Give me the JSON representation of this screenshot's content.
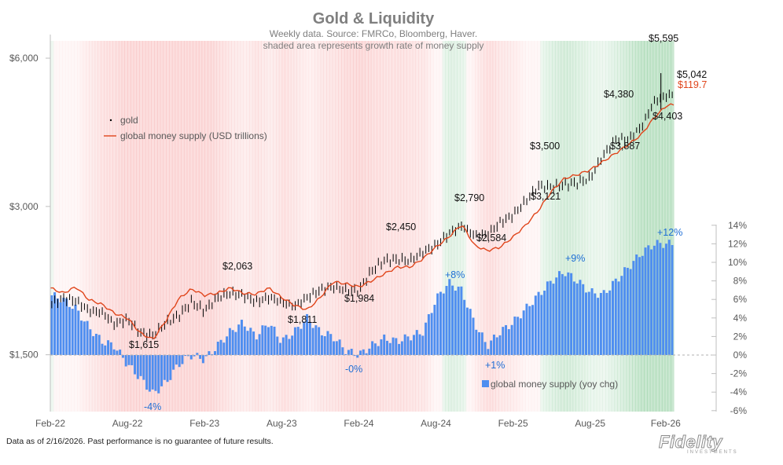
{
  "chart_data": {
    "type": "line",
    "title": "Gold & Liquidity",
    "subtitle_1": "Weekly data.  Source: FMRCo, Bloomberg, Haver.",
    "subtitle_2": "shaded area represents growth rate of money supply",
    "x_labels": [
      "Feb-22",
      "Aug-22",
      "Feb-23",
      "Aug-23",
      "Feb-24",
      "Aug-24",
      "Feb-25",
      "Aug-25",
      "Feb-26"
    ],
    "left_axis": {
      "ticks": [
        "$1,500",
        "$3,000",
        "$6,000"
      ],
      "scale": "log",
      "range": [
        1150,
        6700
      ]
    },
    "right_axis": {
      "ticks": [
        "14%",
        "12%",
        "10%",
        "8%",
        "6%",
        "4%",
        "2%",
        "0%",
        "-2%",
        "-4%",
        "-6%"
      ],
      "range": [
        -6,
        14
      ]
    },
    "series": [
      {
        "name": "gold",
        "kind": "price (weekly high/low bars)",
        "points": [
          [
            "2022-02",
            1900
          ],
          [
            "2022-03",
            1950
          ],
          [
            "2022-04",
            1930
          ],
          [
            "2022-05",
            1840
          ],
          [
            "2022-06",
            1830
          ],
          [
            "2022-07",
            1730
          ],
          [
            "2022-08",
            1770
          ],
          [
            "2022-09",
            1660
          ],
          [
            "2022-10",
            1640
          ],
          [
            "2022-11",
            1740
          ],
          [
            "2022-12",
            1800
          ],
          [
            "2023-01",
            1920
          ],
          [
            "2023-02",
            1840
          ],
          [
            "2023-03",
            1960
          ],
          [
            "2023-04",
            2000
          ],
          [
            "2023-05",
            1980
          ],
          [
            "2023-06",
            1920
          ],
          [
            "2023-07",
            1960
          ],
          [
            "2023-08",
            1920
          ],
          [
            "2023-09",
            1880
          ],
          [
            "2023-10",
            1960
          ],
          [
            "2023-11",
            2030
          ],
          [
            "2023-12",
            2060
          ],
          [
            "2024-01",
            2030
          ],
          [
            "2024-02",
            2020
          ],
          [
            "2024-03",
            2220
          ],
          [
            "2024-04",
            2330
          ],
          [
            "2024-05",
            2340
          ],
          [
            "2024-06",
            2330
          ],
          [
            "2024-07",
            2420
          ],
          [
            "2024-08",
            2500
          ],
          [
            "2024-09",
            2640
          ],
          [
            "2024-10",
            2740
          ],
          [
            "2024-11",
            2620
          ],
          [
            "2024-12",
            2630
          ],
          [
            "2025-01",
            2780
          ],
          [
            "2025-02",
            2880
          ],
          [
            "2025-03",
            3080
          ],
          [
            "2025-04",
            3300
          ],
          [
            "2025-05",
            3280
          ],
          [
            "2025-06",
            3320
          ],
          [
            "2025-07",
            3350
          ],
          [
            "2025-08",
            3420
          ],
          [
            "2025-09",
            3800
          ],
          [
            "2025-10",
            4100
          ],
          [
            "2025-11",
            4100
          ],
          [
            "2025-12",
            4350
          ],
          [
            "2026-01",
            4900
          ],
          [
            "2026-02",
            5042
          ]
        ]
      },
      {
        "name": "global money supply (USD trillions)",
        "points": [
          [
            "2022-02",
            2050
          ],
          [
            "2022-03",
            2000
          ],
          [
            "2022-04",
            2060
          ],
          [
            "2022-05",
            1940
          ],
          [
            "2022-06",
            1900
          ],
          [
            "2022-07",
            1820
          ],
          [
            "2022-08",
            1780
          ],
          [
            "2022-09",
            1660
          ],
          [
            "2022-10",
            1610
          ],
          [
            "2022-11",
            1760
          ],
          [
            "2022-12",
            1950
          ],
          [
            "2023-01",
            2040
          ],
          [
            "2023-02",
            1980
          ],
          [
            "2023-03",
            2000
          ],
          [
            "2023-04",
            2050
          ],
          [
            "2023-05",
            2000
          ],
          [
            "2023-06",
            1990
          ],
          [
            "2023-07",
            2050
          ],
          [
            "2023-08",
            1960
          ],
          [
            "2023-09",
            1890
          ],
          [
            "2023-10",
            1850
          ],
          [
            "2023-11",
            1960
          ],
          [
            "2023-12",
            2110
          ],
          [
            "2024-01",
            2090
          ],
          [
            "2024-02",
            2060
          ],
          [
            "2024-03",
            2120
          ],
          [
            "2024-04",
            2190
          ],
          [
            "2024-05",
            2260
          ],
          [
            "2024-06",
            2260
          ],
          [
            "2024-07",
            2350
          ],
          [
            "2024-08",
            2480
          ],
          [
            "2024-09",
            2600
          ],
          [
            "2024-10",
            2760
          ],
          [
            "2024-11",
            2500
          ],
          [
            "2024-12",
            2440
          ],
          [
            "2025-01",
            2480
          ],
          [
            "2025-02",
            2600
          ],
          [
            "2025-03",
            2750
          ],
          [
            "2025-04",
            2950
          ],
          [
            "2025-05",
            3220
          ],
          [
            "2025-06",
            3420
          ],
          [
            "2025-07",
            3480
          ],
          [
            "2025-08",
            3560
          ],
          [
            "2025-09",
            3700
          ],
          [
            "2025-10",
            3850
          ],
          [
            "2025-11",
            4010
          ],
          [
            "2025-12",
            4200
          ],
          [
            "2026-01",
            4550
          ],
          [
            "2026-02",
            4820
          ]
        ]
      },
      {
        "name": "global money supply (yoy chg)",
        "kind": "bar (%)",
        "points": [
          [
            "2022-02",
            6.5
          ],
          [
            "2022-03",
            6.0
          ],
          [
            "2022-04",
            5.0
          ],
          [
            "2022-05",
            3.0
          ],
          [
            "2022-06",
            1.5
          ],
          [
            "2022-07",
            1.0
          ],
          [
            "2022-08",
            -1.0
          ],
          [
            "2022-09",
            -2.5
          ],
          [
            "2022-10",
            -4.2
          ],
          [
            "2022-11",
            -3.0
          ],
          [
            "2022-12",
            -1.0
          ],
          [
            "2023-01",
            0.0
          ],
          [
            "2023-02",
            -0.5
          ],
          [
            "2023-03",
            1.0
          ],
          [
            "2023-04",
            2.5
          ],
          [
            "2023-05",
            3.5
          ],
          [
            "2023-06",
            2.0
          ],
          [
            "2023-07",
            3.5
          ],
          [
            "2023-08",
            1.5
          ],
          [
            "2023-09",
            2.5
          ],
          [
            "2023-10",
            4.0
          ],
          [
            "2023-11",
            2.5
          ],
          [
            "2023-12",
            2.0
          ],
          [
            "2024-01",
            0.5
          ],
          [
            "2024-02",
            0.0
          ],
          [
            "2024-03",
            1.0
          ],
          [
            "2024-04",
            1.8
          ],
          [
            "2024-05",
            1.5
          ],
          [
            "2024-06",
            2.0
          ],
          [
            "2024-07",
            2.5
          ],
          [
            "2024-08",
            6.0
          ],
          [
            "2024-09",
            7.8
          ],
          [
            "2024-10",
            7.0
          ],
          [
            "2024-11",
            3.5
          ],
          [
            "2024-12",
            1.0
          ],
          [
            "2025-01",
            2.5
          ],
          [
            "2025-02",
            3.5
          ],
          [
            "2025-03",
            5.0
          ],
          [
            "2025-04",
            6.5
          ],
          [
            "2025-05",
            8.0
          ],
          [
            "2025-06",
            9.0
          ],
          [
            "2025-07",
            8.0
          ],
          [
            "2025-08",
            6.8
          ],
          [
            "2025-09",
            6.5
          ],
          [
            "2025-10",
            8.0
          ],
          [
            "2025-11",
            9.5
          ],
          [
            "2025-12",
            11.0
          ],
          [
            "2026-01",
            12.0
          ],
          [
            "2026-02",
            12.0
          ]
        ]
      }
    ],
    "annotations": {
      "gold": [
        "$1,615",
        "$2,063",
        "$1,811",
        "$1,984",
        "$2,450",
        "$2,790",
        "$2,584",
        "$3,500",
        "$3,121",
        "$4,380",
        "$3,887",
        "$4,403",
        "$5,595",
        "$5,042"
      ],
      "money_supply_level": "$119.7",
      "money_supply_yoy": [
        "-4%",
        "-0%",
        "+8%",
        "+1%",
        "+9%",
        "+12%"
      ]
    },
    "legend": {
      "gold": "gold",
      "money": "global money supply (USD trillions)",
      "yoy": "global money supply (yoy chg)"
    },
    "colors": {
      "gold": "#000000",
      "money_line": "#e0451b",
      "bars": "#4f8ef0",
      "shade_green": "#2ea34a",
      "shade_red": "#f05a5a"
    }
  },
  "footer": {
    "disclaimer": "Data as of 2/16/2026. Past performance is no guarantee of future results.",
    "brand": "Fidelity",
    "brand_sub": "INVESTMENTS"
  }
}
